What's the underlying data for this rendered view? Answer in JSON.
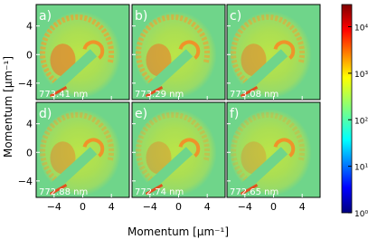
{
  "chart_data": {
    "type": "image-grid",
    "xlabel": "Momentum [μm⁻¹]",
    "ylabel": "Momentum [μm⁻¹]",
    "panels": [
      {
        "label": "a)",
        "annotation": "773.41 nm"
      },
      {
        "label": "b)",
        "annotation": "773.29 nm"
      },
      {
        "label": "c)",
        "annotation": "773.08 nm"
      },
      {
        "label": "d)",
        "annotation": "772.88 nm"
      },
      {
        "label": "e)",
        "annotation": "772.74 nm"
      },
      {
        "label": "f)",
        "annotation": "772.65 nm"
      }
    ],
    "columns": 3,
    "xlim": [
      -6.5,
      6.5
    ],
    "ylim": [
      -6.3,
      7
    ],
    "xticks": [
      {
        "value": -4,
        "label": "−4"
      },
      0,
      4
    ],
    "yticks": [
      {
        "value": -4,
        "label": "−4"
      },
      0,
      4
    ],
    "colorbar": {
      "log": true,
      "lim": [
        1,
        30000
      ],
      "ticks": [
        {
          "value": 1,
          "label": "10⁰"
        },
        {
          "value": 10,
          "label": "10¹"
        },
        {
          "value": 100,
          "label": "10²"
        },
        {
          "value": 1000,
          "label": "10³"
        },
        {
          "value": 10000,
          "label": "10⁴"
        }
      ]
    }
  }
}
